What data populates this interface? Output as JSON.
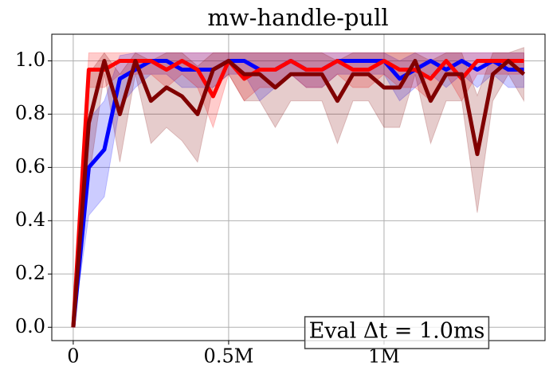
{
  "chart_data": {
    "type": "line",
    "title": "mw-handle-pull",
    "annotation": "Eval Δt = 1.0ms",
    "x": [
      0,
      50000,
      100000,
      150000,
      200000,
      250000,
      300000,
      350000,
      400000,
      450000,
      500000,
      550000,
      600000,
      650000,
      700000,
      750000,
      800000,
      850000,
      900000,
      950000,
      1000000,
      1050000,
      1100000,
      1150000,
      1200000,
      1250000,
      1300000,
      1350000,
      1400000,
      1450000
    ],
    "xlim": [
      -69000,
      1518000
    ],
    "xticks": [
      0,
      {
        "value": 500000,
        "label": "0.5M"
      },
      {
        "value": 1000000,
        "label": "1M"
      }
    ],
    "ylim": [
      -0.05,
      1.1
    ],
    "yticks": [
      {
        "value": 0,
        "label": "0.0"
      },
      0.2,
      0.4,
      0.6,
      0.8,
      {
        "value": 1,
        "label": "1.0"
      }
    ],
    "grid": true,
    "series": [
      {
        "name": "blue",
        "color": "#0000ff",
        "values": [
          0,
          0.6,
          0.667,
          0.933,
          0.967,
          1.0,
          1.0,
          0.967,
          0.967,
          0.967,
          1.0,
          1.0,
          0.967,
          0.967,
          1.0,
          0.967,
          0.967,
          1.0,
          1.0,
          1.0,
          1.0,
          0.933,
          0.967,
          1.0,
          0.967,
          1.0,
          0.967,
          1.0,
          0.967,
          0.967
        ],
        "lower": [
          0,
          0.42,
          0.49,
          0.83,
          0.9,
          0.95,
          0.95,
          0.9,
          0.9,
          0.9,
          0.95,
          0.95,
          0.85,
          0.9,
          0.95,
          0.9,
          0.9,
          0.95,
          0.95,
          0.95,
          0.95,
          0.85,
          0.9,
          0.95,
          0.9,
          0.95,
          0.9,
          0.95,
          0.9,
          0.9
        ],
        "upper": [
          0,
          0.78,
          0.85,
          1.02,
          1.03,
          1.03,
          1.03,
          1.03,
          1.03,
          1.03,
          1.03,
          1.03,
          1.03,
          1.03,
          1.03,
          1.03,
          1.03,
          1.03,
          1.03,
          1.03,
          1.03,
          1.0,
          1.03,
          1.03,
          1.03,
          1.03,
          1.03,
          1.03,
          1.03,
          1.03
        ]
      },
      {
        "name": "red",
        "color": "#ff0000",
        "values": [
          0,
          0.967,
          0.967,
          1.0,
          1.0,
          1.0,
          0.967,
          1.0,
          0.967,
          0.867,
          1.0,
          0.933,
          0.967,
          0.967,
          1.0,
          0.967,
          0.967,
          1.0,
          0.967,
          0.967,
          1.0,
          0.967,
          0.967,
          0.933,
          1.0,
          0.933,
          1.0,
          1.0,
          1.0,
          1.0
        ],
        "lower": [
          0,
          0.9,
          0.9,
          0.95,
          0.95,
          0.95,
          0.9,
          0.95,
          0.9,
          0.75,
          0.95,
          0.85,
          0.9,
          0.9,
          0.95,
          0.9,
          0.9,
          0.95,
          0.9,
          0.9,
          0.95,
          0.9,
          0.9,
          0.85,
          0.95,
          0.85,
          0.95,
          0.95,
          0.95,
          0.95
        ],
        "upper": [
          0,
          1.03,
          1.03,
          1.03,
          1.03,
          1.03,
          1.03,
          1.03,
          1.03,
          1.03,
          1.03,
          1.03,
          1.03,
          1.03,
          1.03,
          1.03,
          1.03,
          1.03,
          1.03,
          1.03,
          1.03,
          1.03,
          1.03,
          1.03,
          1.03,
          1.03,
          1.03,
          1.03,
          1.03,
          1.03
        ]
      },
      {
        "name": "darkred",
        "color": "#800000",
        "values": [
          0,
          0.767,
          1.0,
          0.8,
          1.0,
          0.85,
          0.9,
          0.867,
          0.8,
          0.967,
          1.0,
          0.95,
          0.95,
          0.9,
          0.95,
          0.95,
          0.95,
          0.85,
          0.95,
          0.95,
          0.9,
          0.9,
          1.0,
          0.85,
          0.95,
          0.95,
          0.65,
          0.95,
          1.0,
          0.95
        ],
        "lower": [
          0,
          0.55,
          0.95,
          0.62,
          0.95,
          0.69,
          0.75,
          0.7,
          0.62,
          0.9,
          0.95,
          0.85,
          0.85,
          0.75,
          0.85,
          0.85,
          0.85,
          0.69,
          0.85,
          0.85,
          0.75,
          0.75,
          0.95,
          0.69,
          0.85,
          0.85,
          0.43,
          0.85,
          0.95,
          0.85
        ],
        "upper": [
          0,
          0.95,
          1.03,
          0.95,
          1.03,
          1.0,
          1.03,
          1.03,
          0.98,
          1.03,
          1.03,
          1.03,
          1.03,
          1.03,
          1.03,
          1.03,
          1.03,
          1.0,
          1.03,
          1.03,
          1.03,
          1.03,
          1.03,
          1.0,
          1.03,
          1.03,
          0.87,
          1.03,
          1.03,
          1.05
        ]
      }
    ]
  }
}
